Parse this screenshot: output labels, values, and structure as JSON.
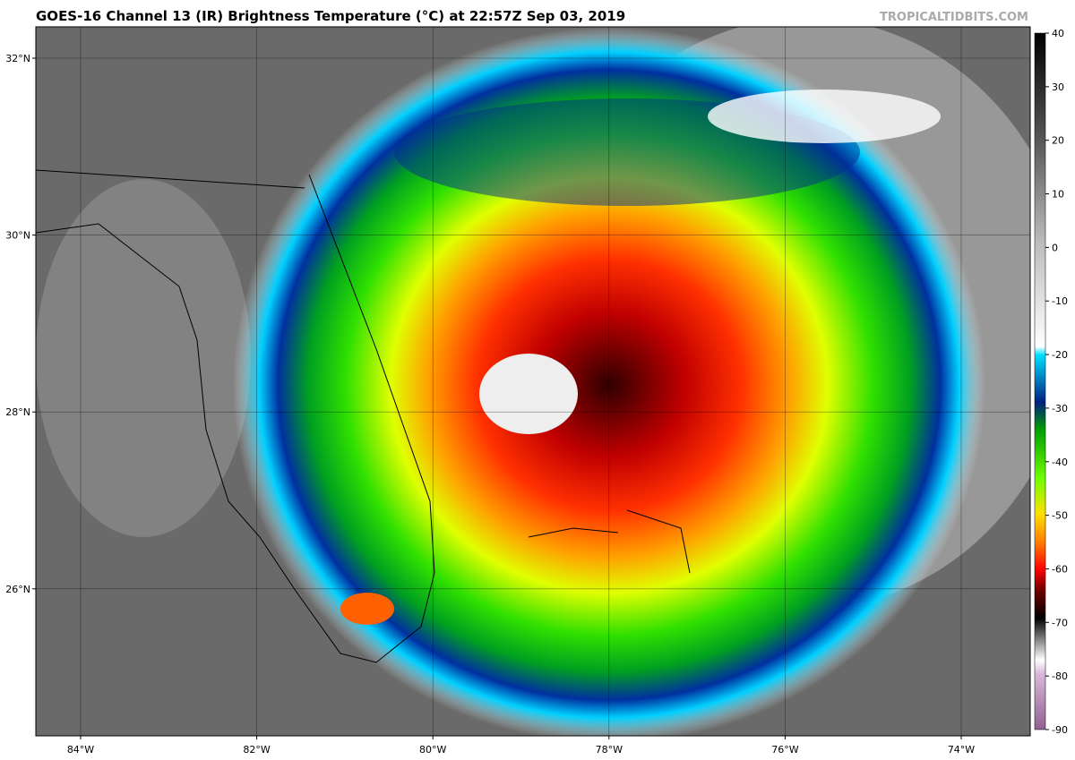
{
  "header": {
    "title": "GOES-16 Channel 13 (IR) Brightness Temperature (°C) at 22:57Z Sep 03, 2019",
    "source": "TROPICALTIDBITS.COM"
  },
  "map": {
    "lat_ticks": [
      {
        "value": 32,
        "label": "32°N"
      },
      {
        "value": 30,
        "label": "30°N"
      },
      {
        "value": 28,
        "label": "28°N"
      },
      {
        "value": 26,
        "label": "26°N"
      }
    ],
    "lon_ticks": [
      {
        "value": -84,
        "label": "84°W"
      },
      {
        "value": -82,
        "label": "82°W"
      },
      {
        "value": -80,
        "label": "80°W"
      },
      {
        "value": -78,
        "label": "78°W"
      },
      {
        "value": -76,
        "label": "76°W"
      },
      {
        "value": -74,
        "label": "74°W"
      }
    ]
  },
  "colorbar": {
    "ticks": [
      40,
      30,
      20,
      10,
      0,
      -10,
      -20,
      -30,
      -40,
      -50,
      -60,
      -70,
      -80,
      -90
    ]
  }
}
